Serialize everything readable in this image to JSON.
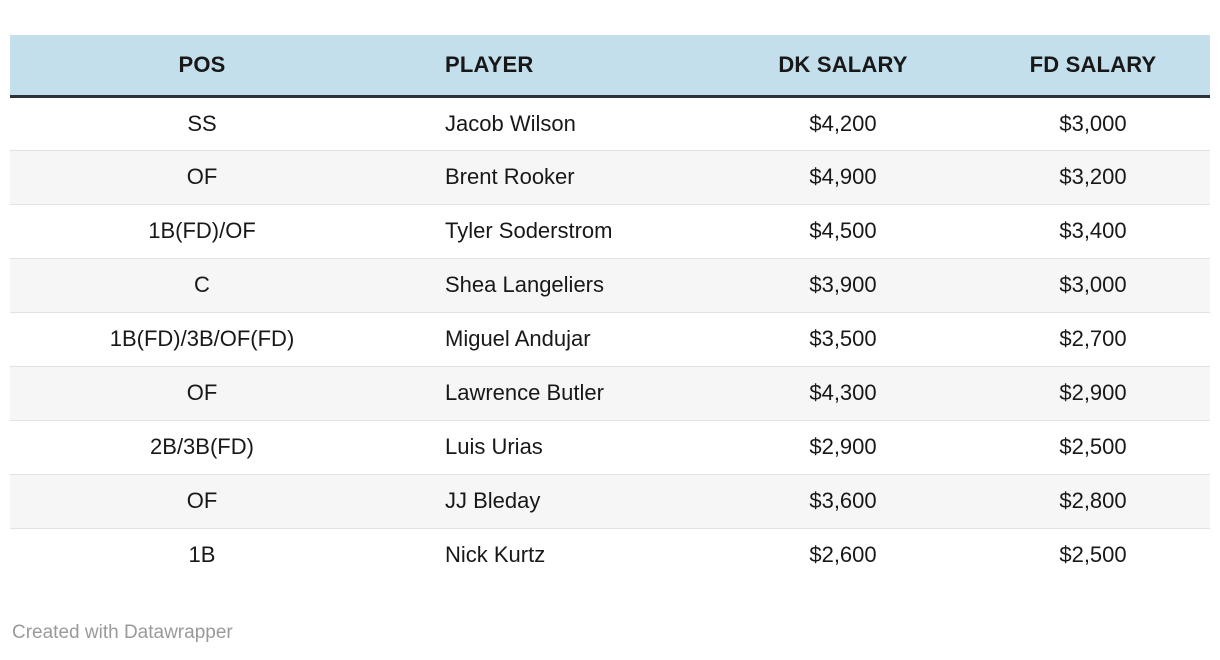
{
  "chart_data": {
    "type": "table",
    "columns": [
      {
        "key": "pos",
        "label": "POS",
        "align": "center"
      },
      {
        "key": "player",
        "label": "PLAYER",
        "align": "left"
      },
      {
        "key": "dk_salary",
        "label": "DK SALARY",
        "align": "center"
      },
      {
        "key": "fd_salary",
        "label": "FD SALARY",
        "align": "center"
      }
    ],
    "rows": [
      [
        "SS",
        "Jacob Wilson",
        "$4,200",
        "$3,000"
      ],
      [
        "OF",
        "Brent Rooker",
        "$4,900",
        "$3,200"
      ],
      [
        "1B(FD)/OF",
        "Tyler Soderstrom",
        "$4,500",
        "$3,400"
      ],
      [
        "C",
        "Shea Langeliers",
        "$3,900",
        "$3,000"
      ],
      [
        "1B(FD)/3B/OF(FD)",
        "Miguel Andujar",
        "$3,500",
        "$2,700"
      ],
      [
        "OF",
        "Lawrence Butler",
        "$4,300",
        "$2,900"
      ],
      [
        "2B/3B(FD)",
        "Luis Urias",
        "$2,900",
        "$2,500"
      ],
      [
        "OF",
        "JJ Bleday",
        "$3,600",
        "$2,800"
      ],
      [
        "1B",
        "Nick Kurtz",
        "$2,600",
        "$2,500"
      ]
    ],
    "layout": {
      "striped": true,
      "stripe_start": "row2",
      "header_position": "top"
    }
  },
  "footer": {
    "attribution": "Created with Datawrapper"
  },
  "colors": {
    "header_bg": "#c2dfeb",
    "header_border": "#2b3339",
    "stripe": "#f6f6f6",
    "row_border": "#e2e2e2",
    "text": "#181818",
    "footer_text": "#9a9a9a",
    "page_bg": "#ffffff"
  }
}
